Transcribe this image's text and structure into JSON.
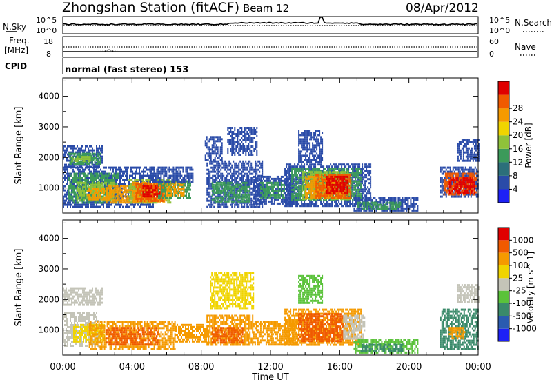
{
  "header": {
    "station": "Zhongshan Station (fitACF)",
    "beam": "Beam 12",
    "date": "08/Apr/2012"
  },
  "strip_labels": {
    "nsky": "N.Sky",
    "nsky_ticks": [
      "10^5",
      "10^0"
    ],
    "nsearch": "N.Search",
    "nsearch_ticks": [
      "10^5",
      "10^0"
    ],
    "freq": "Freq.",
    "freq_unit": "[MHz]",
    "freq_ticks": [
      "18",
      "8"
    ],
    "nave": "Nave",
    "nave_ticks": [
      "60",
      "0"
    ],
    "cpid": "CPID",
    "cpid_value": "normal (fast stereo) 153"
  },
  "chart_data": [
    {
      "type": "heatmap",
      "panel": "power",
      "ylabel": "Slant Range [km]",
      "xlabel": "Time UT",
      "x_ticks": [
        "00:00",
        "04:00",
        "08:00",
        "12:00",
        "16:00",
        "20:00",
        "00:00"
      ],
      "xlim_hours": [
        0,
        24
      ],
      "y_ticks": [
        1000,
        2000,
        3000,
        4000
      ],
      "ylim": [
        180,
        4600
      ],
      "colorbar": {
        "label": "Power [dB]",
        "ticks": [
          "4",
          "8",
          "12",
          "16",
          "20",
          "24",
          "28"
        ],
        "colors": [
          "#1d21f5",
          "#2a4ba8",
          "#2c6f7a",
          "#3c9a5a",
          "#8fc23a",
          "#f0d400",
          "#f59a00",
          "#f05a00",
          "#e00000"
        ]
      },
      "regions": [
        {
          "t": [
            0.0,
            2.3
          ],
          "r": [
            1700,
            2400
          ],
          "c": "#2a4ba8"
        },
        {
          "t": [
            0.3,
            2.2
          ],
          "r": [
            1800,
            2150
          ],
          "c": "#3c9a5a"
        },
        {
          "t": [
            0.5,
            1.6
          ],
          "r": [
            1850,
            2050
          ],
          "c": "#8fc23a"
        },
        {
          "t": [
            0.0,
            5.2
          ],
          "r": [
            400,
            1700
          ],
          "c": "#2a4ba8"
        },
        {
          "t": [
            0.3,
            3.2
          ],
          "r": [
            500,
            1500
          ],
          "c": "#3c9a5a"
        },
        {
          "t": [
            0.8,
            3.0
          ],
          "r": [
            600,
            1200
          ],
          "c": "#8fc23a"
        },
        {
          "t": [
            1.4,
            2.8
          ],
          "r": [
            650,
            1000
          ],
          "c": "#f59a00"
        },
        {
          "t": [
            2.5,
            5.0
          ],
          "r": [
            550,
            1100
          ],
          "c": "#f59a00"
        },
        {
          "t": [
            3.8,
            6.2
          ],
          "r": [
            500,
            1300
          ],
          "c": "#8fc23a"
        },
        {
          "t": [
            4.0,
            6.0
          ],
          "r": [
            550,
            1200
          ],
          "c": "#f59a00"
        },
        {
          "t": [
            4.2,
            5.8
          ],
          "r": [
            600,
            1150
          ],
          "c": "#f05a00"
        },
        {
          "t": [
            4.6,
            5.6
          ],
          "r": [
            700,
            1100
          ],
          "c": "#e00000"
        },
        {
          "t": [
            5.5,
            7.4
          ],
          "r": [
            650,
            1250
          ],
          "c": "#3c9a5a"
        },
        {
          "t": [
            6.0,
            7.0
          ],
          "r": [
            750,
            1200
          ],
          "c": "#f59a00"
        },
        {
          "t": [
            5.0,
            7.5
          ],
          "r": [
            1200,
            1700
          ],
          "c": "#2a4ba8"
        },
        {
          "t": [
            8.3,
            11.5
          ],
          "r": [
            400,
            1900
          ],
          "c": "#2a4ba8"
        },
        {
          "t": [
            8.6,
            10.8
          ],
          "r": [
            550,
            1200
          ],
          "c": "#3c9a5a"
        },
        {
          "t": [
            8.2,
            9.2
          ],
          "r": [
            1900,
            2700
          ],
          "c": "#2a4ba8"
        },
        {
          "t": [
            9.5,
            11.2
          ],
          "r": [
            2100,
            3000
          ],
          "c": "#2a4ba8"
        },
        {
          "t": [
            11.0,
            13.3
          ],
          "r": [
            500,
            1400
          ],
          "c": "#2a4ba8"
        },
        {
          "t": [
            11.4,
            12.8
          ],
          "r": [
            700,
            1200
          ],
          "c": "#3c9a5a"
        },
        {
          "t": [
            12.8,
            17.8
          ],
          "r": [
            400,
            1800
          ],
          "c": "#2a4ba8"
        },
        {
          "t": [
            13.2,
            17.2
          ],
          "r": [
            600,
            1650
          ],
          "c": "#3c9a5a"
        },
        {
          "t": [
            13.8,
            16.6
          ],
          "r": [
            650,
            1550
          ],
          "c": "#8fc23a"
        },
        {
          "t": [
            14.0,
            16.2
          ],
          "r": [
            700,
            1400
          ],
          "c": "#f59a00"
        },
        {
          "t": [
            14.6,
            16.6
          ],
          "r": [
            700,
            1450
          ],
          "c": "#f05a00"
        },
        {
          "t": [
            15.2,
            16.4
          ],
          "r": [
            800,
            1400
          ],
          "c": "#e00000"
        },
        {
          "t": [
            13.6,
            15.0
          ],
          "r": [
            1850,
            2900
          ],
          "c": "#2a4ba8"
        },
        {
          "t": [
            16.8,
            20.5
          ],
          "r": [
            250,
            700
          ],
          "c": "#2a4ba8"
        },
        {
          "t": [
            17.0,
            19.5
          ],
          "r": [
            300,
            550
          ],
          "c": "#3c9a5a"
        },
        {
          "t": [
            21.8,
            24.0
          ],
          "r": [
            700,
            1700
          ],
          "c": "#2a4ba8"
        },
        {
          "t": [
            22.0,
            23.9
          ],
          "r": [
            800,
            1500
          ],
          "c": "#f05a00"
        },
        {
          "t": [
            22.3,
            23.8
          ],
          "r": [
            850,
            1350
          ],
          "c": "#e00000"
        },
        {
          "t": [
            22.8,
            24.0
          ],
          "r": [
            1900,
            2600
          ],
          "c": "#2a4ba8"
        }
      ]
    },
    {
      "type": "heatmap",
      "panel": "velocity",
      "ylabel": "Slant Range [km]",
      "xlabel": "Time UT",
      "x_ticks": [
        "00:00",
        "04:00",
        "08:00",
        "12:00",
        "16:00",
        "20:00",
        "00:00"
      ],
      "xlim_hours": [
        0,
        24
      ],
      "y_ticks": [
        1000,
        2000,
        3000,
        4000
      ],
      "ylim": [
        180,
        4600
      ],
      "colorbar": {
        "label": "Velocity [m s^-1]",
        "ticks": [
          "1000",
          "500",
          "100",
          "25",
          "-25",
          "-100",
          "-500",
          "-1000"
        ],
        "colors": [
          "#1d21f5",
          "#2a5bb0",
          "#3a8a6a",
          "#5ac23a",
          "#c4c4b8",
          "#f0d400",
          "#f59a00",
          "#f05a00",
          "#e00000"
        ]
      },
      "regions": [
        {
          "t": [
            0.0,
            2.3
          ],
          "r": [
            1800,
            2400
          ],
          "c": "#c4c4b8"
        },
        {
          "t": [
            0.0,
            2.0
          ],
          "r": [
            500,
            1600
          ],
          "c": "#c4c4b8"
        },
        {
          "t": [
            0.6,
            2.4
          ],
          "r": [
            600,
            1200
          ],
          "c": "#f0d400"
        },
        {
          "t": [
            1.5,
            6.5
          ],
          "r": [
            400,
            1300
          ],
          "c": "#f59a00"
        },
        {
          "t": [
            2.5,
            5.5
          ],
          "r": [
            500,
            1100
          ],
          "c": "#f05a00"
        },
        {
          "t": [
            6.5,
            8.3
          ],
          "r": [
            650,
            1200
          ],
          "c": "#f59a00"
        },
        {
          "t": [
            8.3,
            11.0
          ],
          "r": [
            500,
            1500
          ],
          "c": "#f59a00"
        },
        {
          "t": [
            8.6,
            10.4
          ],
          "r": [
            600,
            1100
          ],
          "c": "#f05a00"
        },
        {
          "t": [
            8.5,
            11.0
          ],
          "r": [
            1700,
            2900
          ],
          "c": "#f0d400"
        },
        {
          "t": [
            11.0,
            13.5
          ],
          "r": [
            500,
            1300
          ],
          "c": "#f59a00"
        },
        {
          "t": [
            12.8,
            17.2
          ],
          "r": [
            500,
            1700
          ],
          "c": "#f59a00"
        },
        {
          "t": [
            13.6,
            16.2
          ],
          "r": [
            650,
            1550
          ],
          "c": "#f05a00"
        },
        {
          "t": [
            16.2,
            17.4
          ],
          "r": [
            700,
            1500
          ],
          "c": "#c4c4b8"
        },
        {
          "t": [
            13.6,
            15.0
          ],
          "r": [
            1900,
            2800
          ],
          "c": "#5ac23a"
        },
        {
          "t": [
            16.8,
            20.5
          ],
          "r": [
            250,
            700
          ],
          "c": "#5ac23a"
        },
        {
          "t": [
            17.2,
            19.6
          ],
          "r": [
            300,
            550
          ],
          "c": "#3a8a6a"
        },
        {
          "t": [
            21.8,
            24.0
          ],
          "r": [
            400,
            1700
          ],
          "c": "#3a8a6a"
        },
        {
          "t": [
            22.3,
            23.2
          ],
          "r": [
            700,
            1100
          ],
          "c": "#f59a00"
        },
        {
          "t": [
            22.8,
            24.0
          ],
          "r": [
            1900,
            2500
          ],
          "c": "#c4c4b8"
        }
      ]
    }
  ]
}
